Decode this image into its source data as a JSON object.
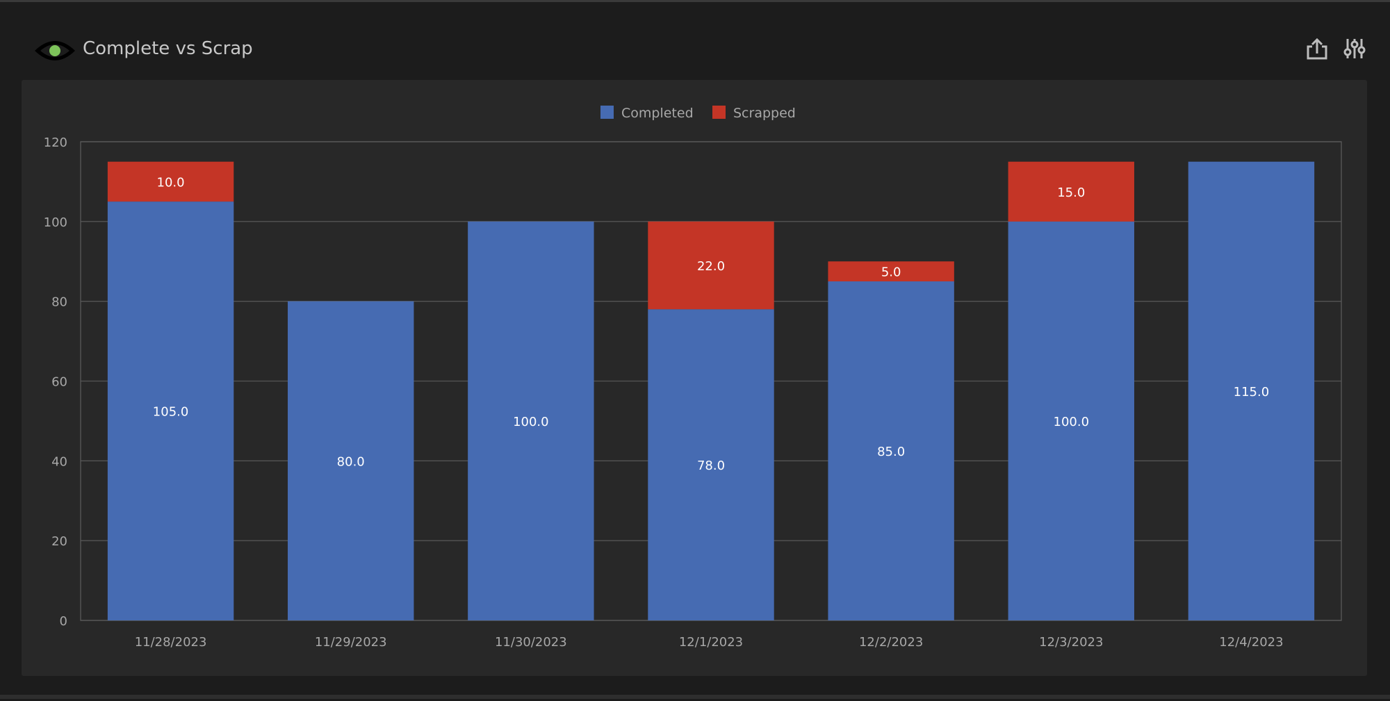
{
  "header": {
    "title": "Complete vs Scrap",
    "logo_icon": "eye-icon",
    "actions": [
      {
        "icon": "export-icon"
      },
      {
        "icon": "sliders-icon"
      }
    ]
  },
  "colors": {
    "completed": "#466bb2",
    "scrapped": "#c43526",
    "logo_accent": "#7dc35a"
  },
  "chart_data": {
    "type": "bar",
    "stacked": true,
    "categories": [
      "11/28/2023",
      "11/29/2023",
      "11/30/2023",
      "12/1/2023",
      "12/2/2023",
      "12/3/2023",
      "12/4/2023"
    ],
    "series": [
      {
        "name": "Completed",
        "color": "#466bb2",
        "values": [
          105,
          80,
          100,
          78,
          85,
          100,
          115
        ]
      },
      {
        "name": "Scrapped",
        "color": "#c43526",
        "values": [
          10,
          0,
          0,
          22,
          5,
          15,
          0
        ]
      }
    ],
    "ylim": [
      0,
      120
    ],
    "yticks": [
      0,
      20,
      40,
      60,
      80,
      100,
      120
    ],
    "grid": true,
    "legend": "top-center",
    "data_labels": true
  }
}
